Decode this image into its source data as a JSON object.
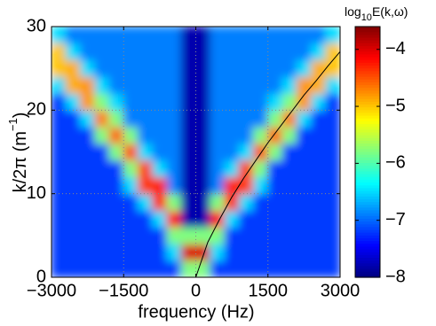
{
  "chart_data": {
    "type": "heatmap",
    "xlabel": "frequency (Hz)",
    "ylabel": {
      "text": "k/2π (m",
      "sup": "−1",
      "close": ")"
    },
    "colorbar_label": {
      "base": "log",
      "sub": "10",
      "rest": "E(k,ω)"
    },
    "colormap": "jet",
    "grid": true,
    "xlim": [
      -3000,
      3000
    ],
    "ylim": [
      0,
      30
    ],
    "clim": [
      -8,
      -3.6
    ],
    "xticks": [
      {
        "value": -3000,
        "label": "−3000"
      },
      {
        "value": -1500,
        "label": "−1500"
      },
      0,
      1500,
      3000
    ],
    "yticks": [
      0,
      10,
      20,
      30
    ],
    "cticks": [
      {
        "value": -8,
        "label": "−8"
      },
      {
        "value": -7,
        "label": "−7"
      },
      {
        "value": -6,
        "label": "−6"
      },
      {
        "value": -5,
        "label": "−5"
      },
      {
        "value": -4,
        "label": "−4"
      }
    ],
    "x": [
      -2850,
      -2550,
      -2250,
      -1950,
      -1650,
      -1350,
      -1050,
      -750,
      -450,
      -150,
      150,
      450,
      750,
      1050,
      1350,
      1650,
      1950,
      2250,
      2550,
      2850
    ],
    "y": [
      1,
      3,
      5,
      7,
      9,
      11,
      13,
      15,
      17,
      19,
      21,
      23,
      25,
      27,
      29
    ],
    "z": [
      [
        -7.2,
        -7.2,
        -7.2,
        -7.2,
        -7.2,
        -7.2,
        -7.2,
        -7.2,
        -7.2,
        -5.8,
        -5.8,
        -7.2,
        -7.2,
        -7.2,
        -7.2,
        -7.2,
        -7.2,
        -7.2,
        -7.2,
        -7.2
      ],
      [
        -7.2,
        -7.2,
        -7.2,
        -7.2,
        -7.2,
        -7.2,
        -7.2,
        -7.2,
        -6.5,
        -4.0,
        -4.0,
        -6.5,
        -7.2,
        -7.2,
        -7.2,
        -7.2,
        -7.2,
        -7.2,
        -7.2,
        -7.2
      ],
      [
        -7.2,
        -7.2,
        -7.2,
        -7.2,
        -7.2,
        -7.2,
        -7.2,
        -7.2,
        -5.8,
        -5.8,
        -5.8,
        -5.8,
        -7.2,
        -7.2,
        -7.2,
        -7.2,
        -7.2,
        -7.2,
        -7.2,
        -7.2
      ],
      [
        -7.2,
        -7.2,
        -7.2,
        -7.2,
        -7.2,
        -7.2,
        -7.2,
        -6.5,
        -4.2,
        -7.8,
        -7.8,
        -4.2,
        -6.5,
        -7.2,
        -7.2,
        -7.2,
        -7.2,
        -7.2,
        -7.2,
        -7.2
      ],
      [
        -7.2,
        -7.2,
        -7.2,
        -7.2,
        -7.2,
        -7.2,
        -6.5,
        -4.3,
        -5.8,
        -7.8,
        -7.8,
        -5.8,
        -4.3,
        -6.5,
        -7.2,
        -7.2,
        -7.2,
        -7.2,
        -7.2,
        -7.2
      ],
      [
        -7.2,
        -7.2,
        -7.2,
        -7.2,
        -7.2,
        -6.5,
        -4.4,
        -4.3,
        -6.9,
        -7.8,
        -7.8,
        -6.9,
        -4.3,
        -4.4,
        -6.5,
        -7.2,
        -7.2,
        -7.2,
        -7.2,
        -7.2
      ],
      [
        -7.2,
        -7.2,
        -7.2,
        -7.2,
        -7.2,
        -5.8,
        -4.4,
        -6.5,
        -6.9,
        -7.8,
        -7.8,
        -6.9,
        -6.5,
        -4.4,
        -5.8,
        -7.2,
        -7.2,
        -7.2,
        -7.2,
        -7.2
      ],
      [
        -7.2,
        -7.2,
        -7.2,
        -7.2,
        -5.8,
        -4.5,
        -6.5,
        -6.9,
        -6.9,
        -7.8,
        -7.8,
        -6.9,
        -6.9,
        -6.5,
        -4.5,
        -5.8,
        -7.2,
        -7.2,
        -7.2,
        -7.2
      ],
      [
        -7.2,
        -7.2,
        -7.2,
        -5.8,
        -4.6,
        -5.8,
        -6.9,
        -6.9,
        -6.9,
        -7.8,
        -7.8,
        -6.9,
        -6.9,
        -6.9,
        -5.8,
        -4.6,
        -5.8,
        -7.2,
        -7.2,
        -7.2
      ],
      [
        -7.2,
        -7.2,
        -6.5,
        -4.7,
        -5.8,
        -6.9,
        -6.9,
        -6.9,
        -6.9,
        -7.8,
        -7.8,
        -6.9,
        -6.9,
        -6.9,
        -6.9,
        -5.8,
        -4.7,
        -6.5,
        -7.2,
        -7.2
      ],
      [
        -7.2,
        -6.5,
        -4.8,
        -5.8,
        -6.5,
        -6.9,
        -6.9,
        -6.9,
        -6.9,
        -7.8,
        -7.8,
        -6.9,
        -6.9,
        -6.9,
        -6.9,
        -6.5,
        -5.8,
        -4.8,
        -6.5,
        -7.2
      ],
      [
        -6.5,
        -4.9,
        -4.8,
        -6.5,
        -6.9,
        -6.9,
        -6.9,
        -6.9,
        -6.9,
        -7.8,
        -7.8,
        -6.9,
        -6.9,
        -6.9,
        -6.9,
        -6.9,
        -6.5,
        -4.8,
        -4.9,
        -6.5
      ],
      [
        -5.0,
        -4.9,
        -6.5,
        -6.9,
        -6.9,
        -6.9,
        -6.9,
        -6.9,
        -6.9,
        -7.8,
        -7.8,
        -6.9,
        -6.9,
        -6.9,
        -6.9,
        -6.9,
        -6.9,
        -6.5,
        -4.9,
        -5.0
      ],
      [
        -5.0,
        -6.5,
        -6.9,
        -6.9,
        -6.9,
        -6.9,
        -6.9,
        -6.9,
        -6.9,
        -7.8,
        -7.8,
        -6.9,
        -6.9,
        -6.9,
        -6.9,
        -6.9,
        -6.9,
        -6.9,
        -6.5,
        -5.0
      ],
      [
        -6.5,
        -6.9,
        -6.9,
        -6.9,
        -6.9,
        -6.9,
        -6.9,
        -6.9,
        -6.9,
        -7.8,
        -7.8,
        -6.9,
        -6.9,
        -6.9,
        -6.9,
        -6.9,
        -6.9,
        -6.9,
        -6.9,
        -6.5
      ]
    ],
    "curve": {
      "color": "#000000",
      "x": [
        0,
        250,
        500,
        750,
        1000,
        1250,
        1500,
        1750,
        2000,
        2250,
        2500,
        2750,
        3000
      ],
      "values": [
        0,
        4.2,
        7.0,
        9.6,
        11.9,
        14.0,
        16.1,
        18.0,
        19.9,
        21.8,
        23.5,
        25.3,
        27.0
      ]
    }
  }
}
